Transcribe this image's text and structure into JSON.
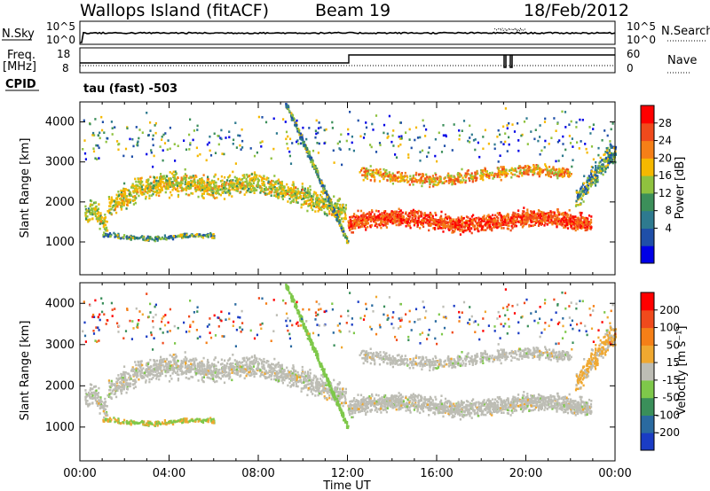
{
  "header": {
    "station": "Wallops Island (fitACF)",
    "beam": "Beam 19",
    "date": "18/Feb/2012"
  },
  "top_panels": {
    "nsky_label": "N.Sky",
    "nsky_tick_hi": "10^5",
    "nsky_tick_lo": "10^0",
    "nsearch_label": "N.Search",
    "nsearch_tick_hi": "10^5",
    "nsearch_tick_lo": "10^0",
    "freq_label_1": "Freq.",
    "freq_label_2": "[MHz]",
    "freq_tick_hi": "18",
    "freq_tick_lo": "8",
    "nave_label": "Nave",
    "nave_tick_hi": "60",
    "nave_tick_lo": "0",
    "cpid_label": "CPID",
    "cpid_text": "tau (fast) -503"
  },
  "chart_data": [
    {
      "type": "heatmap",
      "title": "",
      "xlabel": "Time UT",
      "ylabel": "Slant Range [km]",
      "xlim": [
        "00:00",
        "24:00"
      ],
      "ylim": [
        180,
        4500
      ],
      "x_ticks": [
        "00:00",
        "04:00",
        "08:00",
        "12:00",
        "16:00",
        "20:00",
        "00:00"
      ],
      "y_ticks": [
        1000,
        2000,
        3000,
        4000
      ],
      "colorbar_label": "Power [dB]",
      "colorbar_ticks": [
        "4",
        "8",
        "12",
        "16",
        "20",
        "24",
        "28"
      ],
      "colors": [
        "#0000e6",
        "#1f4fa8",
        "#2e7a8f",
        "#3c8f5a",
        "#8fc23f",
        "#f5b800",
        "#f57f17",
        "#f04a1c",
        "#ff0000"
      ],
      "features": [
        {
          "name": "main band",
          "time": [
            0.3,
            11.8
          ],
          "range_km": [
            1400,
            3000
          ]
        },
        {
          "name": "near band",
          "time": [
            12.0,
            23.0
          ],
          "range_km": [
            1200,
            2100
          ]
        },
        {
          "name": "far band",
          "time": [
            12.5,
            22.0
          ],
          "range_km": [
            2500,
            3000
          ]
        },
        {
          "name": "low band",
          "time": [
            1.0,
            6.0
          ],
          "range_km": [
            1000,
            1300
          ]
        }
      ]
    },
    {
      "type": "heatmap",
      "title": "",
      "xlabel": "Time UT",
      "ylabel": "Slant Range [km]",
      "xlim": [
        "00:00",
        "24:00"
      ],
      "ylim": [
        180,
        4500
      ],
      "x_ticks": [
        "00:00",
        "04:00",
        "08:00",
        "12:00",
        "16:00",
        "20:00",
        "00:00"
      ],
      "y_ticks": [
        1000,
        2000,
        3000,
        4000
      ],
      "colorbar_label": "Velocity [m s⁻¹]",
      "colorbar_ticks": [
        "200",
        "100",
        "50",
        "15",
        "-15",
        "-50",
        "-100",
        "-200"
      ],
      "colors": [
        "#1a3cc4",
        "#2a6aa0",
        "#3a8f5a",
        "#7ec84a",
        "#bdbdb5",
        "#f0a830",
        "#f57f17",
        "#f04a1c",
        "#ff0000"
      ]
    }
  ],
  "axis": {
    "xlabel": "Time UT",
    "ylabel": "Slant Range [km]",
    "x_ticks": [
      "00:00",
      "04:00",
      "08:00",
      "12:00",
      "16:00",
      "20:00",
      "00:00"
    ],
    "y_ticks": [
      "1000",
      "2000",
      "3000",
      "4000"
    ]
  },
  "colorbars": {
    "power_label": "Power [dB]",
    "power_ticks": [
      "4",
      "8",
      "12",
      "16",
      "20",
      "24",
      "28"
    ],
    "velocity_label": "Velocity [m s⁻¹]",
    "velocity_ticks": [
      "200",
      "100",
      "50",
      "15",
      "-15",
      "-50",
      "-100",
      "-200"
    ]
  }
}
